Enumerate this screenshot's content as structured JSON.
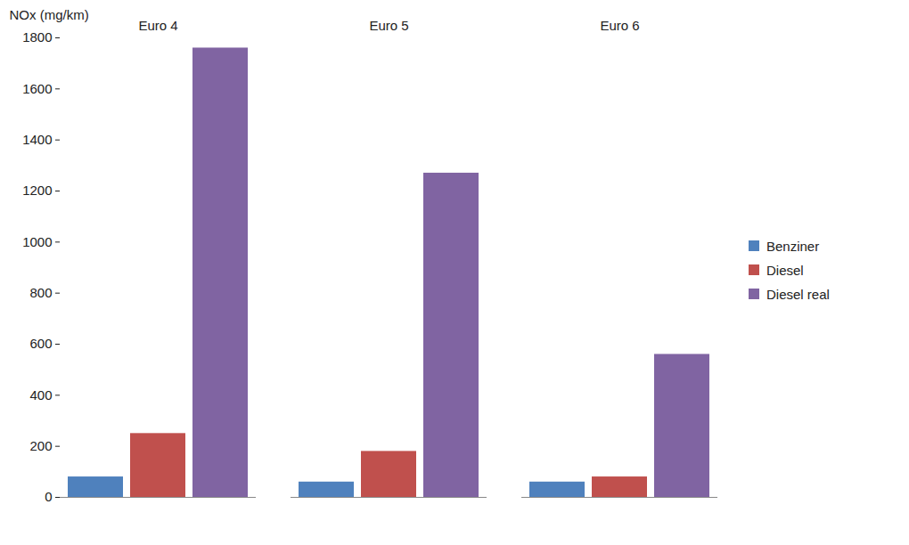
{
  "chart_data": {
    "type": "bar",
    "y_label": "NOx (mg/km)",
    "categories": [
      "Euro 4",
      "Euro 5",
      "Euro 6"
    ],
    "series": [
      {
        "name": "Benziner",
        "color": "#4f81bd",
        "values": [
          80,
          60,
          60
        ]
      },
      {
        "name": "Diesel",
        "color": "#c0504d",
        "values": [
          250,
          180,
          80
        ]
      },
      {
        "name": "Diesel real",
        "color": "#8064a2",
        "values": [
          1760,
          1270,
          560
        ]
      }
    ],
    "ylim": [
      0,
      1800
    ],
    "yticks": [
      0,
      200,
      400,
      600,
      800,
      1000,
      1200,
      1400,
      1600,
      1800
    ],
    "grid": false,
    "legend": "right"
  }
}
